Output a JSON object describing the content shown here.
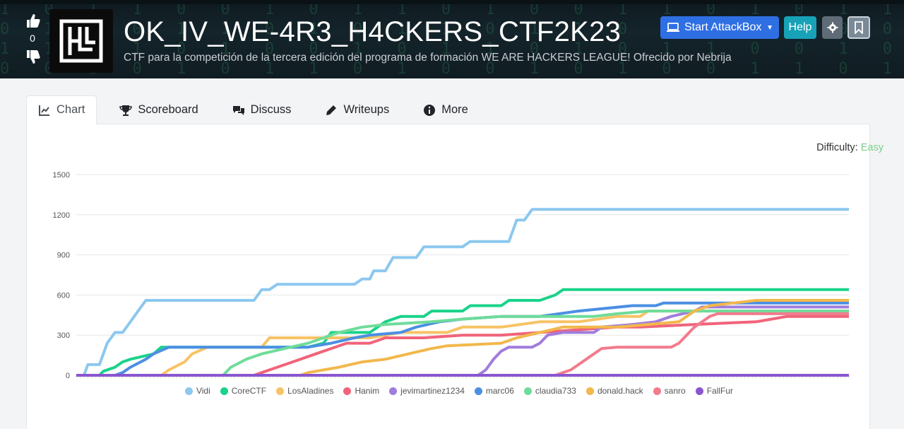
{
  "room": {
    "title": "OK_IV_WE-4R3_H4CKERS_CTF2K23",
    "subtitle": "CTF para la competición de la tercera edición del programa de formación WE ARE HACKERS LEAGUE! Ofrecido por Nebrija",
    "votes": "0"
  },
  "header_buttons": {
    "attackbox": "Start AttackBox",
    "help": "Help"
  },
  "tabs": [
    {
      "label": "Chart",
      "icon": "line-chart-icon"
    },
    {
      "label": "Scoreboard",
      "icon": "trophy-icon"
    },
    {
      "label": "Discuss",
      "icon": "comments-icon"
    },
    {
      "label": "Writeups",
      "icon": "pen-icon"
    },
    {
      "label": "More",
      "icon": "info-circle-icon"
    }
  ],
  "difficulty": {
    "label": "Difficulty:",
    "value": "Easy",
    "color": "#7ccf8a"
  },
  "chart_data": {
    "type": "line",
    "ylim": [
      0,
      1500
    ],
    "yticks": [
      "1500",
      "1200",
      "900",
      "600",
      "300",
      "0"
    ],
    "grid": true,
    "legend": "bottom",
    "x_count": 100,
    "series": [
      {
        "name": "Vidi",
        "color": "#8cc8ef",
        "points": [
          [
            0,
            0
          ],
          [
            1,
            0
          ],
          [
            1.5,
            80
          ],
          [
            3,
            80
          ],
          [
            4,
            240
          ],
          [
            5,
            320
          ],
          [
            6,
            320
          ],
          [
            7,
            400
          ],
          [
            8,
            480
          ],
          [
            9,
            560
          ],
          [
            23,
            560
          ],
          [
            24,
            640
          ],
          [
            25,
            640
          ],
          [
            26,
            680
          ],
          [
            36,
            680
          ],
          [
            37,
            720
          ],
          [
            38,
            720
          ],
          [
            38.5,
            780
          ],
          [
            40,
            780
          ],
          [
            41,
            880
          ],
          [
            44,
            880
          ],
          [
            45,
            960
          ],
          [
            50,
            960
          ],
          [
            51,
            1000
          ],
          [
            56,
            1000
          ],
          [
            57,
            1160
          ],
          [
            58,
            1160
          ],
          [
            59,
            1240
          ],
          [
            100,
            1240
          ]
        ]
      },
      {
        "name": "CoreCTF",
        "color": "#19d38a",
        "points": [
          [
            0,
            0
          ],
          [
            3,
            0
          ],
          [
            3.5,
            30
          ],
          [
            5,
            60
          ],
          [
            6,
            100
          ],
          [
            7,
            120
          ],
          [
            10,
            160
          ],
          [
            11,
            210
          ],
          [
            16,
            210
          ],
          [
            20,
            210
          ],
          [
            30,
            210
          ],
          [
            32,
            240
          ],
          [
            33,
            320
          ],
          [
            38,
            320
          ],
          [
            39,
            360
          ],
          [
            40,
            400
          ],
          [
            42,
            440
          ],
          [
            45,
            440
          ],
          [
            46,
            480
          ],
          [
            50,
            480
          ],
          [
            51,
            520
          ],
          [
            55,
            520
          ],
          [
            56,
            560
          ],
          [
            60,
            560
          ],
          [
            62,
            600
          ],
          [
            63,
            640
          ],
          [
            100,
            640
          ]
        ]
      },
      {
        "name": "LosAladines",
        "color": "#f7c365",
        "points": [
          [
            0,
            0
          ],
          [
            11,
            0
          ],
          [
            12,
            40
          ],
          [
            14,
            100
          ],
          [
            15,
            160
          ],
          [
            17,
            210
          ],
          [
            24,
            210
          ],
          [
            25,
            280
          ],
          [
            30,
            280
          ],
          [
            36,
            280
          ],
          [
            38,
            280
          ],
          [
            42,
            320
          ],
          [
            48,
            320
          ],
          [
            50,
            360
          ],
          [
            55,
            360
          ],
          [
            60,
            400
          ],
          [
            65,
            400
          ],
          [
            70,
            440
          ],
          [
            73,
            440
          ],
          [
            74,
            480
          ],
          [
            78,
            480
          ],
          [
            100,
            480
          ]
        ]
      },
      {
        "name": "Hanim",
        "color": "#f0647a",
        "points": [
          [
            0,
            0
          ],
          [
            23,
            0
          ],
          [
            24,
            20
          ],
          [
            25,
            40
          ],
          [
            27,
            80
          ],
          [
            29,
            120
          ],
          [
            31,
            160
          ],
          [
            33,
            200
          ],
          [
            35,
            240
          ],
          [
            38,
            240
          ],
          [
            40,
            280
          ],
          [
            45,
            280
          ],
          [
            50,
            300
          ],
          [
            55,
            300
          ],
          [
            60,
            320
          ],
          [
            70,
            360
          ],
          [
            73,
            360
          ],
          [
            80,
            380
          ],
          [
            88,
            400
          ],
          [
            90,
            420
          ],
          [
            92,
            440
          ],
          [
            93,
            440
          ],
          [
            100,
            440
          ]
        ]
      },
      {
        "name": "jevimartinez1234",
        "color": "#a07ddc",
        "points": [
          [
            0,
            0
          ],
          [
            52,
            0
          ],
          [
            53,
            40
          ],
          [
            54,
            120
          ],
          [
            55,
            180
          ],
          [
            56,
            210
          ],
          [
            59,
            210
          ],
          [
            60,
            240
          ],
          [
            61,
            300
          ],
          [
            63,
            320
          ],
          [
            67,
            320
          ],
          [
            68,
            360
          ],
          [
            72,
            380
          ],
          [
            75,
            400
          ],
          [
            77,
            440
          ],
          [
            80,
            480
          ],
          [
            81,
            510
          ],
          [
            100,
            510
          ]
        ]
      },
      {
        "name": "marc06",
        "color": "#4b8fe3",
        "points": [
          [
            0,
            0
          ],
          [
            5,
            0
          ],
          [
            6,
            20
          ],
          [
            7,
            60
          ],
          [
            9,
            120
          ],
          [
            10,
            160
          ],
          [
            12,
            210
          ],
          [
            30,
            210
          ],
          [
            33,
            240
          ],
          [
            36,
            280
          ],
          [
            38,
            300
          ],
          [
            42,
            320
          ],
          [
            44,
            360
          ],
          [
            47,
            400
          ],
          [
            50,
            420
          ],
          [
            55,
            440
          ],
          [
            60,
            440
          ],
          [
            65,
            480
          ],
          [
            72,
            520
          ],
          [
            75,
            520
          ],
          [
            76,
            540
          ],
          [
            100,
            540
          ]
        ]
      },
      {
        "name": "claudia733",
        "color": "#6fdc9a",
        "points": [
          [
            0,
            0
          ],
          [
            19,
            0
          ],
          [
            20,
            60
          ],
          [
            22,
            120
          ],
          [
            24,
            160
          ],
          [
            27,
            200
          ],
          [
            30,
            240
          ],
          [
            32,
            280
          ],
          [
            34,
            320
          ],
          [
            37,
            360
          ],
          [
            40,
            380
          ],
          [
            46,
            400
          ],
          [
            50,
            420
          ],
          [
            55,
            440
          ],
          [
            60,
            440
          ],
          [
            67,
            440
          ],
          [
            70,
            460
          ],
          [
            74,
            480
          ],
          [
            78,
            480
          ],
          [
            100,
            480
          ]
        ]
      },
      {
        "name": "donald.hack",
        "color": "#f2b84c",
        "points": [
          [
            0,
            0
          ],
          [
            29,
            0
          ],
          [
            30,
            20
          ],
          [
            32,
            40
          ],
          [
            34,
            60
          ],
          [
            37,
            100
          ],
          [
            40,
            120
          ],
          [
            43,
            160
          ],
          [
            46,
            200
          ],
          [
            48,
            220
          ],
          [
            55,
            240
          ],
          [
            57,
            280
          ],
          [
            60,
            320
          ],
          [
            63,
            360
          ],
          [
            70,
            360
          ],
          [
            74,
            380
          ],
          [
            78,
            400
          ],
          [
            80,
            480
          ],
          [
            82,
            520
          ],
          [
            85,
            540
          ],
          [
            88,
            560
          ],
          [
            100,
            560
          ]
        ]
      },
      {
        "name": "sanro",
        "color": "#f27b8c",
        "points": [
          [
            0,
            0
          ],
          [
            62,
            0
          ],
          [
            63,
            20
          ],
          [
            64,
            40
          ],
          [
            65,
            80
          ],
          [
            66,
            120
          ],
          [
            67,
            160
          ],
          [
            68,
            200
          ],
          [
            70,
            210
          ],
          [
            72,
            210
          ],
          [
            77,
            210
          ],
          [
            78,
            240
          ],
          [
            79,
            300
          ],
          [
            80,
            360
          ],
          [
            81,
            400
          ],
          [
            82,
            440
          ],
          [
            83,
            460
          ],
          [
            100,
            460
          ]
        ]
      },
      {
        "name": "FallFur",
        "color": "#8a56cf",
        "points": [
          [
            0,
            0
          ],
          [
            100,
            0
          ]
        ]
      }
    ]
  }
}
